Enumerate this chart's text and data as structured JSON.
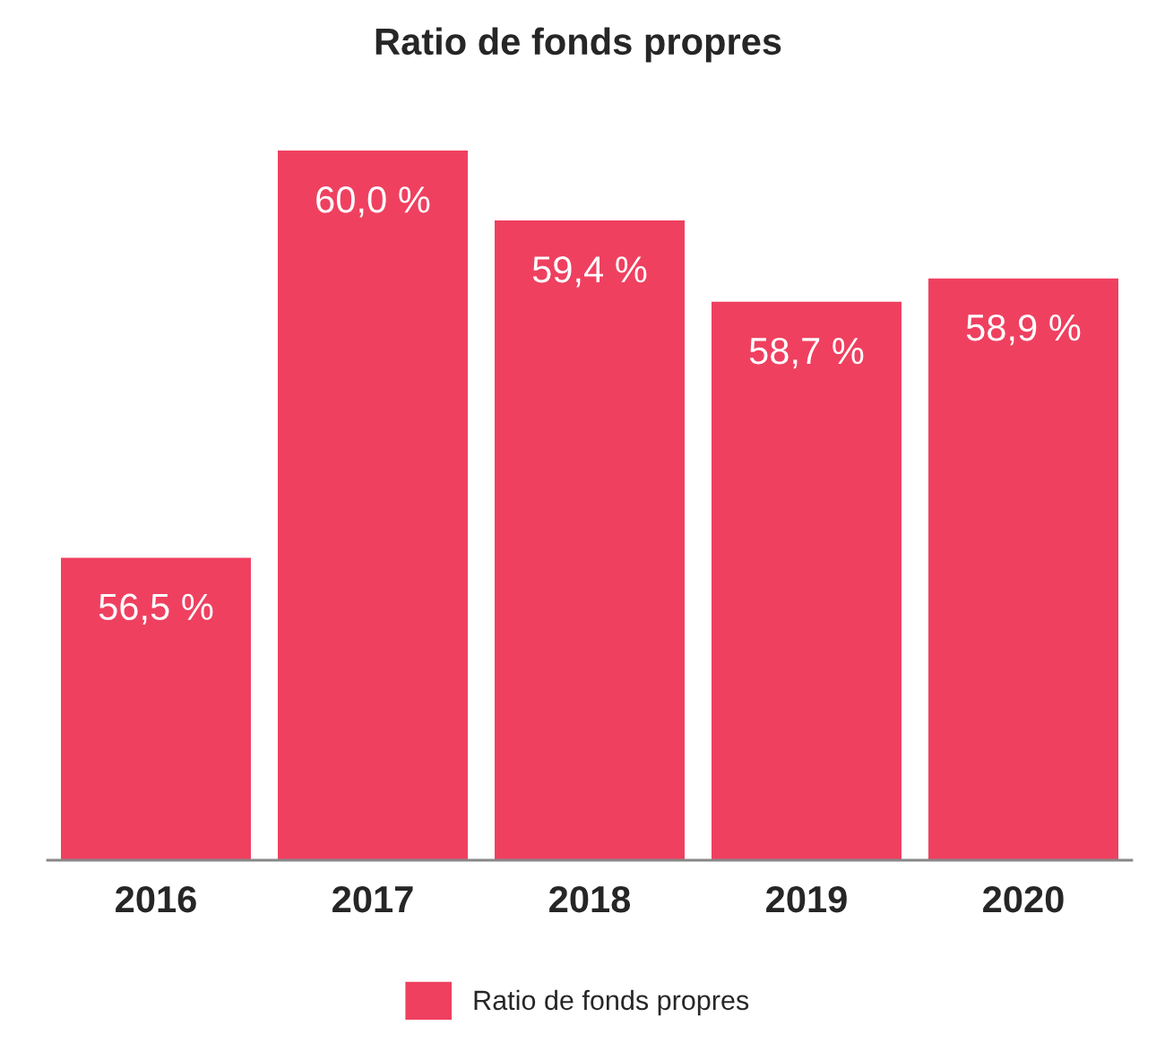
{
  "chart_data": {
    "type": "bar",
    "title": "Ratio de fonds propres",
    "categories": [
      "2016",
      "2017",
      "2018",
      "2019",
      "2020"
    ],
    "series": [
      {
        "name": "Ratio de fonds propres",
        "color": "#ef4060",
        "values": [
          56.5,
          60.0,
          59.4,
          58.7,
          58.9
        ],
        "value_labels": [
          "56,5 %",
          "60,0 %",
          "59,4 %",
          "58,7 %",
          "58,9 %"
        ]
      }
    ],
    "ylim": [
      53.9,
      60.0
    ],
    "tick_labels": "x",
    "legend": "bottom",
    "grid": false
  }
}
